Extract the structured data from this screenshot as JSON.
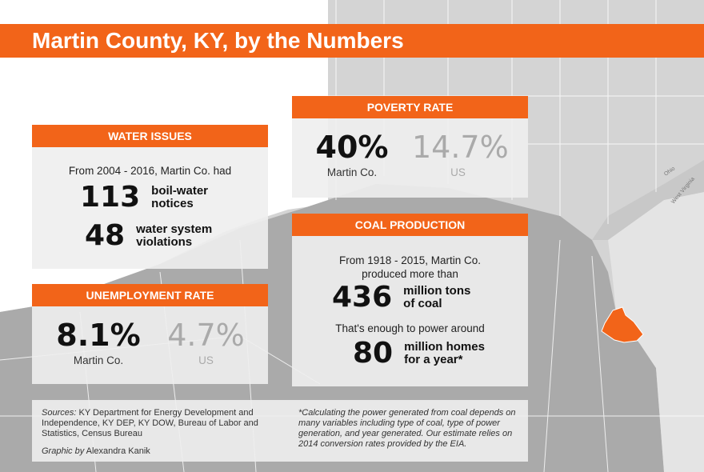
{
  "title": "Martin County, KY, by the Numbers",
  "map": {
    "labels": {
      "ohio": "Ohio",
      "wv": "West Virginia"
    },
    "highlight_color": "#f26419"
  },
  "water": {
    "header": "WATER ISSUES",
    "intro": "From 2004 - 2016, Martin Co. had",
    "items": [
      {
        "value": "113",
        "label1": "boil-water",
        "label2": "notices"
      },
      {
        "value": "48",
        "label1": "water system",
        "label2": "violations"
      }
    ]
  },
  "unemployment": {
    "header": "UNEMPLOYMENT RATE",
    "martin": {
      "value": "8.1%",
      "label": "Martin Co."
    },
    "us": {
      "value": "4.7%",
      "label": "US"
    }
  },
  "poverty": {
    "header": "POVERTY RATE",
    "martin": {
      "value": "40%",
      "label": "Martin Co."
    },
    "us": {
      "value": "14.7%",
      "label": "US"
    }
  },
  "coal": {
    "header": "COAL PRODUCTION",
    "intro1": "From 1918 - 2015, Martin Co.",
    "intro2": "produced more than",
    "tons": {
      "value": "436",
      "label1": "million tons",
      "label2": "of coal"
    },
    "mid": "That's enough to power around",
    "homes": {
      "value": "80",
      "label1": "million homes",
      "label2": "for a year*"
    }
  },
  "footer": {
    "sources_label": "Sources:",
    "sources": "KY Department for Energy Development and Independence, KY DEP, KY DOW, Bureau of Labor and Statistics, Census Bureau",
    "graphic_label": "Graphic by",
    "graphic_author": "Alexandra Kanik",
    "note": "*Calculating the power generated from coal depends on many variables including type of coal, type of power generation, and year generated. Our estimate relies on 2014 conversion rates provided by the EIA."
  }
}
